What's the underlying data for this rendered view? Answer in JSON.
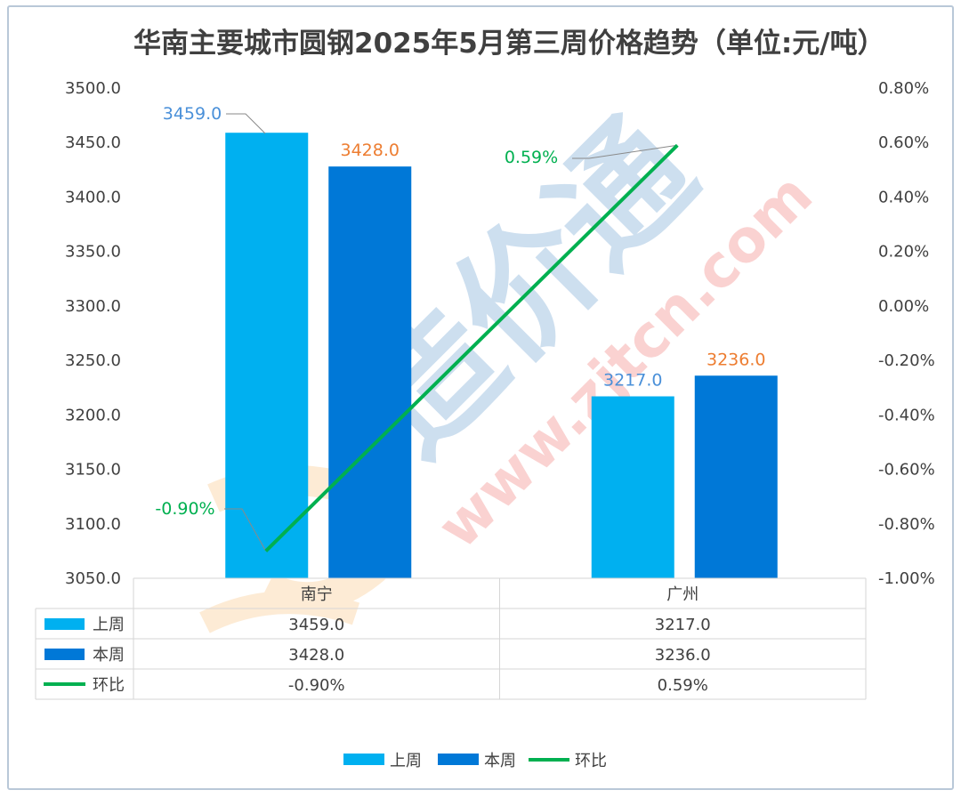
{
  "chart_data": {
    "type": "bar",
    "title": "华南主要城市圆钢2025年5月第三周价格趋势（单位:元/吨）",
    "categories": [
      "南宁",
      "广州"
    ],
    "series": [
      {
        "name": "上周",
        "type": "bar",
        "axis": "left",
        "values": [
          3459.0,
          3217.0
        ],
        "labels": [
          "3459.0",
          "3217.0"
        ],
        "color": "#00B0F0",
        "label_color": "#4A90D9"
      },
      {
        "name": "本周",
        "type": "bar",
        "axis": "left",
        "values": [
          3428.0,
          3236.0
        ],
        "labels": [
          "3428.0",
          "3236.0"
        ],
        "color": "#0078D7",
        "label_color": "#ED7D31"
      },
      {
        "name": "环比",
        "type": "line",
        "axis": "right",
        "values": [
          -0.9,
          0.59
        ],
        "labels": [
          "-0.90%",
          "0.59%"
        ],
        "color": "#00B050",
        "label_color": "#00B050"
      }
    ],
    "y_left": {
      "range": [
        3050,
        3500
      ],
      "ticks": [
        "3500.0",
        "3450.0",
        "3400.0",
        "3350.0",
        "3300.0",
        "3250.0",
        "3200.0",
        "3150.0",
        "3100.0",
        "3050.0"
      ]
    },
    "y_right": {
      "range": [
        -1.0,
        0.8
      ],
      "ticks": [
        "0.80%",
        "0.60%",
        "0.40%",
        "0.20%",
        "0.00%",
        "-0.20%",
        "-0.40%",
        "-0.60%",
        "-0.80%",
        "-1.00%"
      ]
    },
    "grid": false,
    "legend": {
      "position": "bottom",
      "entries": [
        "上周",
        "本周",
        "环比"
      ]
    },
    "data_table": {
      "rows": [
        {
          "name": "上周",
          "cells": [
            "3459.0",
            "3217.0"
          ]
        },
        {
          "name": "本周",
          "cells": [
            "3428.0",
            "3236.0"
          ]
        },
        {
          "name": "环比",
          "cells": [
            "-0.90%",
            "0.59%"
          ]
        }
      ]
    },
    "watermark": "zjtcn.com"
  }
}
